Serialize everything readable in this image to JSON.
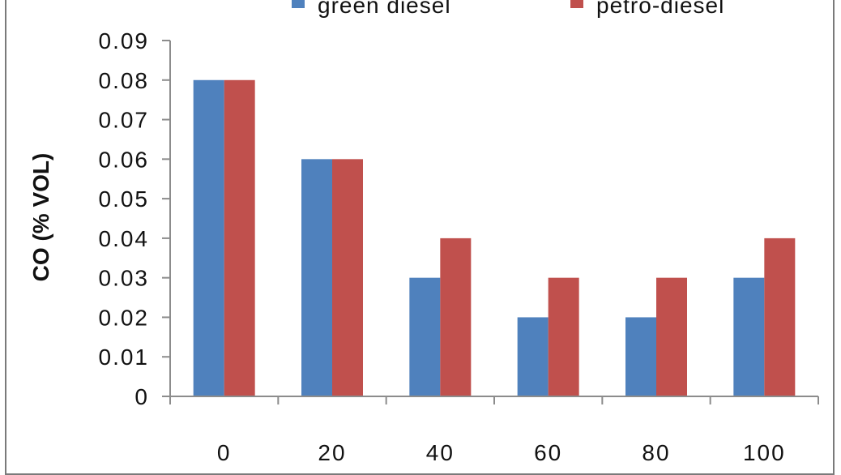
{
  "chart_data": {
    "type": "bar",
    "categories": [
      "0",
      "20",
      "40",
      "60",
      "80",
      "100"
    ],
    "series": [
      {
        "name": "green diesel",
        "color": "#4f81bd",
        "values": [
          0.08,
          0.06,
          0.03,
          0.02,
          0.02,
          0.03
        ]
      },
      {
        "name": "petro-diesel",
        "color": "#c0504d",
        "values": [
          0.08,
          0.06,
          0.04,
          0.03,
          0.03,
          0.04
        ]
      }
    ],
    "title": "",
    "xlabel": "",
    "ylabel": "CO (% VOL)",
    "ylim": [
      0,
      0.09
    ],
    "yticks": [
      "0",
      "0.01",
      "0.02",
      "0.03",
      "0.04",
      "0.05",
      "0.06",
      "0.07",
      "0.08",
      "0.09"
    ],
    "grid": false,
    "legend_position": "top"
  }
}
